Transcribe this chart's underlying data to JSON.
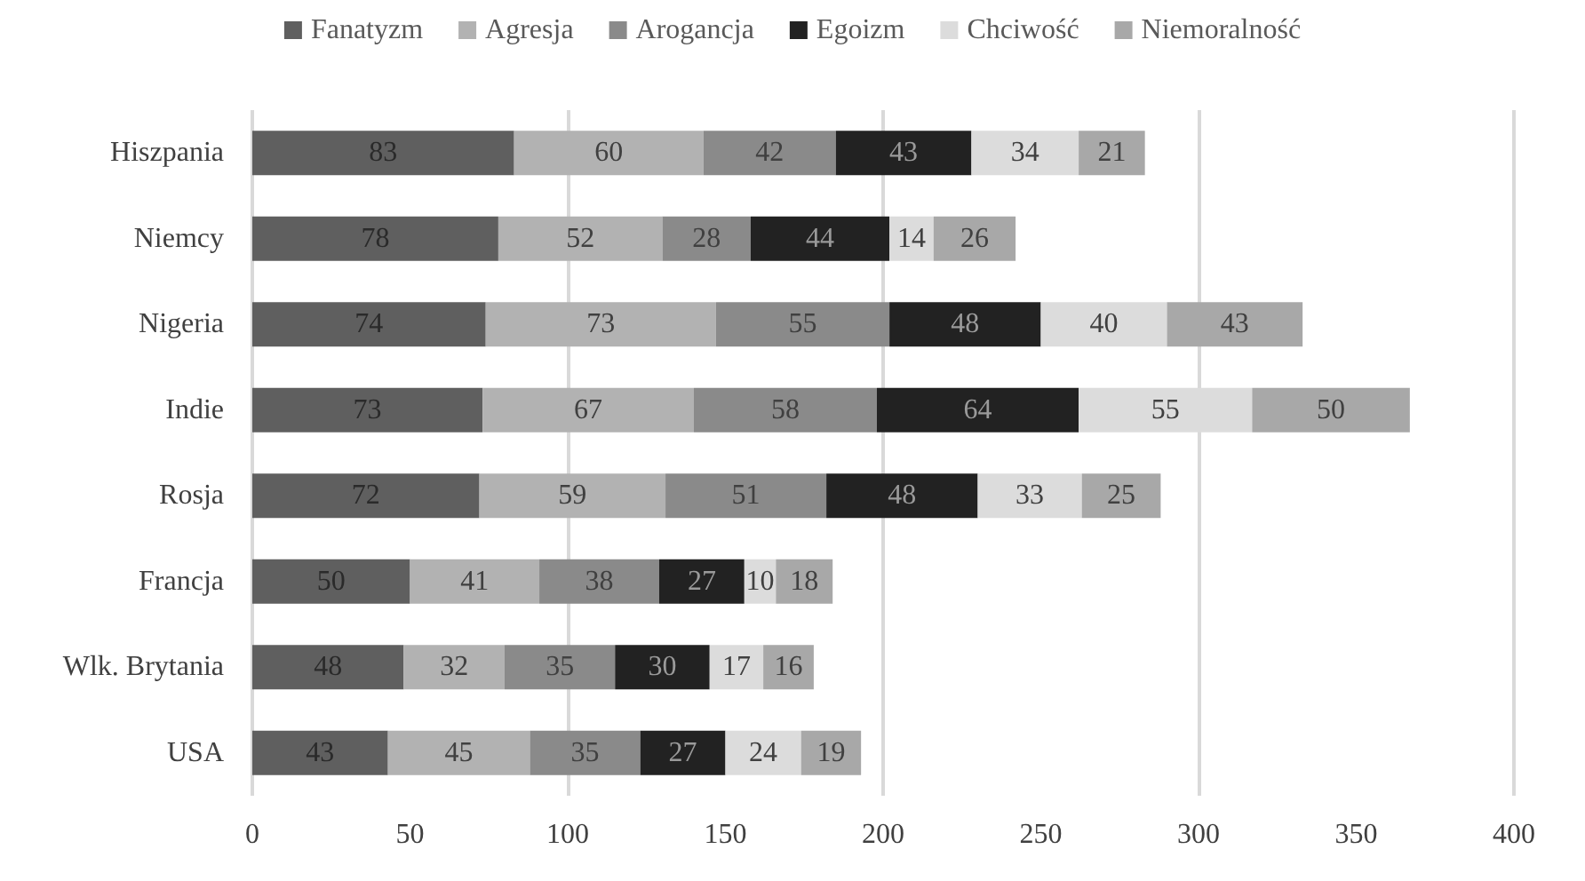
{
  "chart_data": {
    "type": "bar",
    "orientation": "horizontal",
    "stacked": true,
    "data_labels": true,
    "grid": "x",
    "legend": "top",
    "categories": [
      "Hiszpania",
      "Niemcy",
      "Nigeria",
      "Indie",
      "Rosja",
      "Francja",
      "Wlk. Brytania",
      "USA"
    ],
    "xlim": [
      0,
      400
    ],
    "xticks": [
      0,
      50,
      100,
      150,
      200,
      250,
      300,
      350,
      400
    ],
    "series": [
      {
        "name": "Fanatyzm",
        "color": "#5f5f5f",
        "values": [
          83,
          78,
          74,
          73,
          72,
          50,
          48,
          43
        ]
      },
      {
        "name": "Agresja",
        "color": "#b2b2b2",
        "values": [
          60,
          52,
          73,
          67,
          59,
          41,
          32,
          45
        ]
      },
      {
        "name": "Arogancja",
        "color": "#8a8a8a",
        "values": [
          42,
          28,
          55,
          58,
          51,
          38,
          35,
          35
        ]
      },
      {
        "name": "Egoizm",
        "color": "#222222",
        "values": [
          43,
          44,
          48,
          64,
          48,
          27,
          30,
          27
        ]
      },
      {
        "name": "Chciwość",
        "color": "#dcdcdc",
        "values": [
          34,
          14,
          40,
          55,
          33,
          10,
          17,
          24
        ]
      },
      {
        "name": "Niemoralność",
        "color": "#a8a8a8",
        "values": [
          21,
          26,
          43,
          50,
          25,
          18,
          16,
          19
        ]
      }
    ]
  }
}
